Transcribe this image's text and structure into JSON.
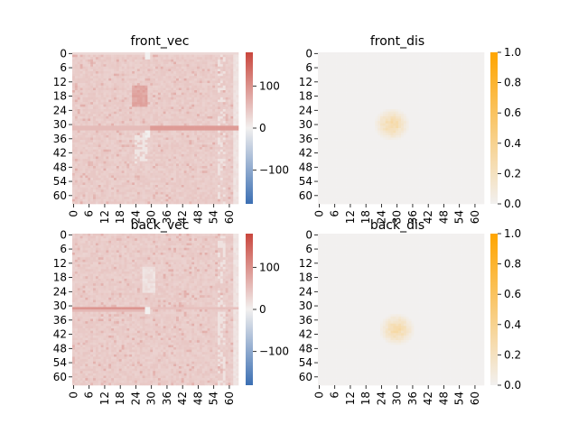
{
  "chart_data": [
    {
      "type": "heatmap",
      "title": "front_vec",
      "grid_size": 64,
      "xticks": [
        "0",
        "6",
        "12",
        "18",
        "24",
        "30",
        "36",
        "42",
        "48",
        "54",
        "60"
      ],
      "yticks": [
        "0",
        "6",
        "12",
        "18",
        "24",
        "30",
        "36",
        "42",
        "48",
        "54",
        "60"
      ],
      "colorbar": {
        "min": -180,
        "max": 180,
        "ticks": [
          "100",
          "0",
          "−100"
        ],
        "tick_values": [
          100,
          0,
          -100
        ],
        "colors": [
          "#3b6fb3",
          "#f2f0ef",
          "#c9463d"
        ]
      },
      "cell_approx": "most cells ~40 (light red); lighter stripe near column 56-58; darker rows 31-32 in right half; darker spot near rows 14-22, columns 24-28"
    },
    {
      "type": "heatmap",
      "title": "front_dis",
      "grid_size": 64,
      "xticks": [
        "0",
        "6",
        "12",
        "18",
        "24",
        "30",
        "36",
        "42",
        "48",
        "54",
        "60"
      ],
      "yticks": [
        "0",
        "6",
        "12",
        "18",
        "24",
        "30",
        "36",
        "42",
        "48",
        "54",
        "60"
      ],
      "colorbar": {
        "min": 0,
        "max": 1,
        "ticks": [
          "1.0",
          "0.8",
          "0.6",
          "0.4",
          "0.2",
          "0.0"
        ],
        "tick_values": [
          1.0,
          0.8,
          0.6,
          0.4,
          0.2,
          0.0
        ],
        "colors": [
          "#f2f0ef",
          "#ffa500"
        ]
      },
      "blob": {
        "center_row": 30,
        "center_col": 28,
        "radius": 7,
        "peak": 0.35
      }
    },
    {
      "type": "heatmap",
      "title": "back_vec",
      "grid_size": 64,
      "xticks": [
        "0",
        "6",
        "12",
        "18",
        "24",
        "30",
        "36",
        "42",
        "48",
        "54",
        "60"
      ],
      "yticks": [
        "0",
        "6",
        "12",
        "18",
        "24",
        "30",
        "36",
        "42",
        "48",
        "54",
        "60"
      ],
      "colorbar": {
        "min": -180,
        "max": 180,
        "ticks": [
          "100",
          "0",
          "−100"
        ],
        "tick_values": [
          100,
          0,
          -100
        ],
        "colors": [
          "#3b6fb3",
          "#f2f0ef",
          "#c9463d"
        ]
      },
      "cell_approx": "most cells ~40 (light red); lighter stripe near column 56-58; darker row 31 in left half; light spot near rows 14-24, columns 28-31"
    },
    {
      "type": "heatmap",
      "title": "back_dis",
      "grid_size": 64,
      "xticks": [
        "0",
        "6",
        "12",
        "18",
        "24",
        "30",
        "36",
        "42",
        "48",
        "54",
        "60"
      ],
      "yticks": [
        "0",
        "6",
        "12",
        "18",
        "24",
        "30",
        "36",
        "42",
        "48",
        "54",
        "60"
      ],
      "colorbar": {
        "min": 0,
        "max": 1,
        "ticks": [
          "1.0",
          "0.8",
          "0.6",
          "0.4",
          "0.2",
          "0.0"
        ],
        "tick_values": [
          1.0,
          0.8,
          0.6,
          0.4,
          0.2,
          0.0
        ],
        "colors": [
          "#f2f0ef",
          "#ffa500"
        ]
      },
      "blob": {
        "center_row": 40,
        "center_col": 30,
        "radius": 7,
        "peak": 0.35
      }
    }
  ]
}
